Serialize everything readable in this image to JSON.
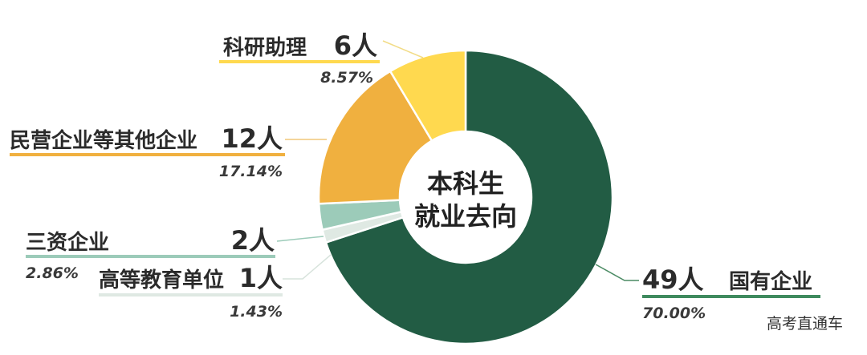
{
  "chart_data": {
    "type": "pie",
    "center_title": [
      "本科生",
      "就业去向"
    ],
    "categories": [
      "国有企业",
      "高等教育单位",
      "三资企业",
      "民营企业等其他企业",
      "科研助理"
    ],
    "values": [
      49,
      1,
      2,
      12,
      6
    ],
    "counts": [
      "49人",
      "1人",
      "2人",
      "12人",
      "6人"
    ],
    "percentages": [
      "70.00%",
      "1.43%",
      "2.86%",
      "17.14%",
      "8.57%"
    ],
    "colors": [
      "#225c44",
      "#dfe9e3",
      "#9ccbb9",
      "#f0b03f",
      "#ffd94f"
    ],
    "underline_colors": [
      "#3f8a5e",
      "#dfe9e3",
      "#9ccbb9",
      "#f0b03f",
      "#ffd94f"
    ]
  },
  "watermark": "高考直通车"
}
